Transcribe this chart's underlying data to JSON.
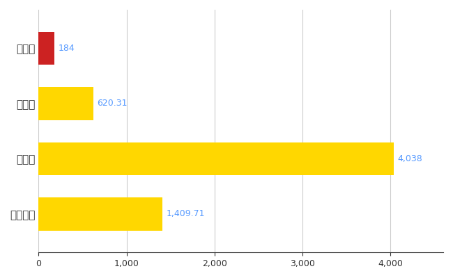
{
  "categories": [
    "朝日町",
    "県平均",
    "県最大",
    "全国平均"
  ],
  "values": [
    184,
    620.31,
    4038,
    1409.71
  ],
  "bar_colors": [
    "#CC2222",
    "#FFD700",
    "#FFD700",
    "#FFD700"
  ],
  "bar_labels": [
    "184",
    "620.31",
    "4,038",
    "1,409.71"
  ],
  "xlim": [
    0,
    4600
  ],
  "xticks": [
    0,
    1000,
    2000,
    3000,
    4000
  ],
  "label_color": "#5599ff",
  "grid_color": "#cccccc",
  "background_color": "#ffffff",
  "bar_height": 0.6,
  "figwidth": 6.5,
  "figheight": 4.0,
  "dpi": 100
}
